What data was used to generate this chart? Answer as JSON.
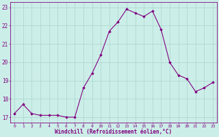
{
  "x": [
    0,
    1,
    2,
    3,
    4,
    5,
    6,
    7,
    8,
    9,
    10,
    11,
    12,
    13,
    14,
    15,
    16,
    17,
    18,
    19,
    20,
    21,
    22,
    23
  ],
  "y": [
    17.2,
    17.7,
    17.2,
    17.1,
    17.1,
    17.1,
    17.0,
    17.0,
    18.6,
    19.4,
    20.4,
    21.7,
    22.2,
    22.9,
    22.7,
    22.5,
    22.8,
    21.8,
    20.0,
    19.3,
    19.1,
    18.4,
    18.6,
    18.9
  ],
  "line_color": "#800080",
  "marker": "D",
  "marker_size": 1.8,
  "bg_color": "#cceee8",
  "grid_color": "#aad4ce",
  "xlabel": "Windchill (Refroidissement éolien,°C)",
  "xlabel_color": "#800080",
  "tick_color": "#800080",
  "ylim": [
    16.7,
    23.3
  ],
  "yticks": [
    17,
    18,
    19,
    20,
    21,
    22,
    23
  ],
  "xlim": [
    -0.5,
    23.5
  ],
  "xtick_fontsize": 4.5,
  "ytick_fontsize": 5.5,
  "xlabel_fontsize": 5.5
}
